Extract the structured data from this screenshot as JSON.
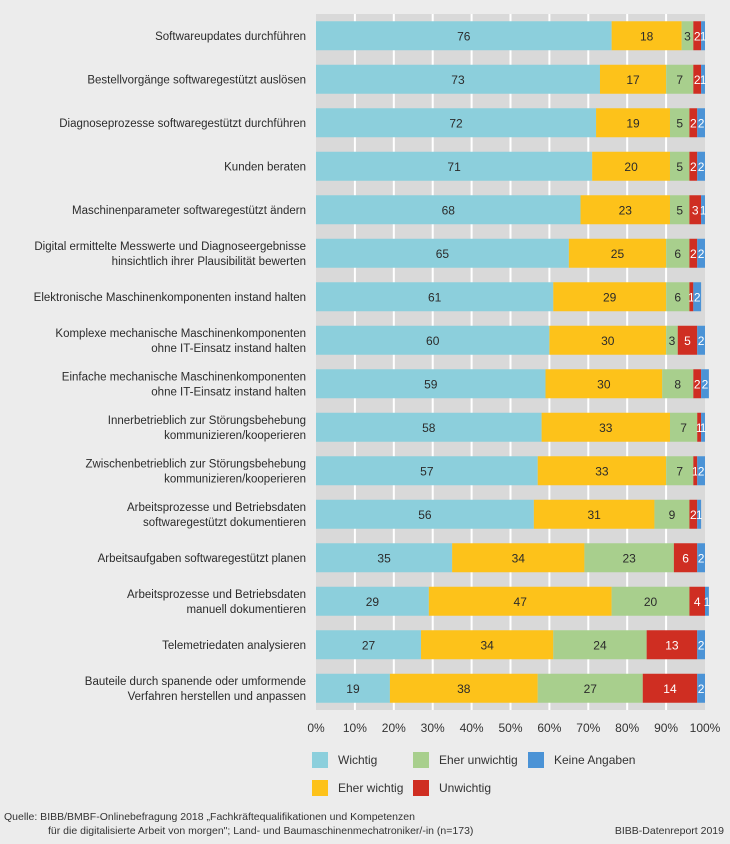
{
  "chart_data": {
    "type": "bar",
    "orientation": "horizontal",
    "stacked": true,
    "title": "",
    "xlabel": "",
    "ylabel": "",
    "xlim": [
      0,
      100
    ],
    "x_ticks": [
      "0%",
      "10%",
      "20%",
      "30%",
      "40%",
      "50%",
      "60%",
      "70%",
      "80%",
      "90%",
      "100%"
    ],
    "grid": true,
    "legend_position": "bottom",
    "categories": [
      [
        "Softwareupdates durchführen"
      ],
      [
        "Bestellvorgänge softwaregestützt auslösen"
      ],
      [
        "Diagnoseprozesse softwaregestützt durchführen"
      ],
      [
        "Kunden beraten"
      ],
      [
        "Maschinenparameter softwaregestützt ändern"
      ],
      [
        "Digital ermittelte Messwerte und Diagnoseergebnisse",
        "hinsichtlich ihrer Plausibilität bewerten"
      ],
      [
        "Elektronische Maschinenkomponenten instand halten"
      ],
      [
        "Komplexe mechanische Maschinenkomponenten",
        "ohne IT-Einsatz instand halten"
      ],
      [
        "Einfache mechanische Maschinenkomponenten",
        "ohne IT-Einsatz instand halten"
      ],
      [
        "Innerbetrieblich zur Störungsbehebung",
        "kommunizieren/kooperieren"
      ],
      [
        "Zwischenbetrieblich zur Störungsbehebung",
        "kommunizieren/kooperieren"
      ],
      [
        "Arbeitsprozesse und Betriebsdaten",
        "softwaregestützt dokumentieren"
      ],
      [
        "Arbeitsaufgaben softwaregestützt planen"
      ],
      [
        "Arbeitsprozesse und Betriebsdaten",
        "manuell dokumentieren"
      ],
      [
        "Telemetriedaten analysieren"
      ],
      [
        "Bauteile durch spanende oder umformende",
        "Verfahren herstellen und anpassen"
      ]
    ],
    "series": [
      {
        "name": "Wichtig",
        "color": "#8ccfdc",
        "label_color": "#2b2b2b",
        "values": [
          76,
          73,
          72,
          71,
          68,
          65,
          61,
          60,
          59,
          58,
          57,
          56,
          35,
          29,
          27,
          19
        ]
      },
      {
        "name": "Eher wichtig",
        "color": "#fdc21a",
        "label_color": "#2b2b2b",
        "values": [
          18,
          17,
          19,
          20,
          23,
          25,
          29,
          30,
          30,
          33,
          33,
          31,
          34,
          47,
          34,
          38
        ]
      },
      {
        "name": "Eher unwichtig",
        "color": "#a8cf8d",
        "label_color": "#2b2b2b",
        "values": [
          3,
          7,
          5,
          5,
          5,
          6,
          6,
          3,
          8,
          7,
          7,
          9,
          23,
          20,
          24,
          27
        ]
      },
      {
        "name": "Unwichtig",
        "color": "#cf2e22",
        "label_color": "#ffffff",
        "values": [
          2,
          2,
          2,
          2,
          3,
          2,
          1,
          5,
          2,
          1,
          1,
          2,
          6,
          4,
          13,
          14
        ]
      },
      {
        "name": "Keine Angaben",
        "color": "#4b93d6",
        "label_color": "#ffffff",
        "values": [
          1,
          1,
          2,
          2,
          1,
          2,
          2,
          2,
          2,
          1,
          2,
          1,
          2,
          1,
          2,
          2
        ]
      }
    ]
  },
  "legend": {
    "items": [
      {
        "label": "Wichtig",
        "color": "#8ccfdc"
      },
      {
        "label": "Eher wichtig",
        "color": "#fdc21a"
      },
      {
        "label": "Eher unwichtig",
        "color": "#a8cf8d"
      },
      {
        "label": "Unwichtig",
        "color": "#cf2e22"
      },
      {
        "label": "Keine Angaben",
        "color": "#4b93d6"
      }
    ]
  },
  "footer": {
    "source_line1": "Quelle: BIBB/BMBF-Onlinebefragung 2018 „Fachkräftequalifikationen und Kompetenzen",
    "source_line2": "für die digitalisierte Arbeit von morgen\"; Land- und Baumaschinenmechatroniker/-in (n=173)",
    "credit": "BIBB-Datenreport 2019"
  }
}
